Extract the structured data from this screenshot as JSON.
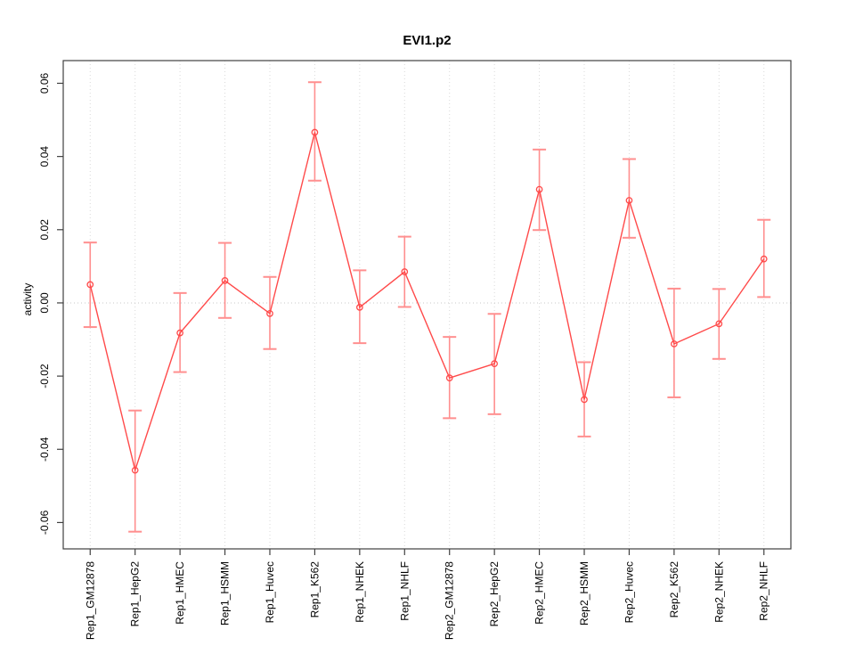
{
  "chart_data": {
    "type": "line",
    "title": "EVI1.p2",
    "xlabel": "",
    "ylabel": "activity",
    "categories": [
      "Rep1_GM12878",
      "Rep1_HepG2",
      "Rep1_HMEC",
      "Rep1_HSMM",
      "Rep1_Huvec",
      "Rep1_K562",
      "Rep1_NHEK",
      "Rep1_NHLF",
      "Rep2_GM12878",
      "Rep2_HepG2",
      "Rep2_HMEC",
      "Rep2_HSMM",
      "Rep2_Huvec",
      "Rep2_K562",
      "Rep2_NHEK",
      "Rep2_NHLF"
    ],
    "series": [
      {
        "name": "activity",
        "marker": "open-circle",
        "values": [
          0.005,
          -0.0457,
          -0.0082,
          0.0061,
          -0.0029,
          0.0466,
          -0.0012,
          0.0085,
          -0.0205,
          -0.0166,
          0.031,
          -0.0264,
          0.028,
          -0.0112,
          -0.0057,
          0.012
        ],
        "error_low": [
          -0.0066,
          -0.0625,
          -0.0189,
          -0.0041,
          -0.0126,
          0.0334,
          -0.011,
          -0.0011,
          -0.0315,
          -0.0304,
          0.0199,
          -0.0365,
          0.0178,
          -0.0258,
          -0.0153,
          0.0016
        ],
        "error_high": [
          0.0165,
          -0.0294,
          0.0027,
          0.0164,
          0.0071,
          0.0603,
          0.0089,
          0.0181,
          -0.0093,
          -0.003,
          0.0419,
          -0.0162,
          0.0393,
          0.0039,
          0.0038,
          0.0227
        ]
      }
    ],
    "yticks": [
      {
        "v": 0.06,
        "label": "0.06"
      },
      {
        "v": 0.04,
        "label": "0.04"
      },
      {
        "v": 0.02,
        "label": "0.02"
      },
      {
        "v": 0.0,
        "label": "0.00"
      },
      {
        "v": -0.02,
        "label": "-0.02"
      },
      {
        "v": -0.04,
        "label": "-0.04"
      },
      {
        "v": -0.06,
        "label": "-0.06"
      }
    ],
    "ylim": [
      -0.0672,
      0.0662
    ],
    "grid": {
      "vertical_per_category": true,
      "horizontal_zero_line": true,
      "style": "dotted"
    },
    "legend": "none",
    "colors": {
      "line": "#ff4a4a",
      "point": "#ff4a4a",
      "error_bar": "#ff8f8f",
      "grid": "#d9d9d9",
      "zero_line": "#c8c8c8",
      "axis": "#404040",
      "text": "#000000",
      "background": "#ffffff"
    }
  }
}
